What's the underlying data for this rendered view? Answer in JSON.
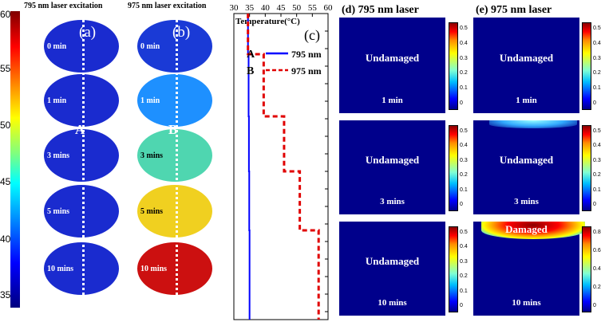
{
  "left_colorbar": {
    "ticks": [
      "60",
      "55",
      "50",
      "45",
      "40",
      "35"
    ]
  },
  "panel_a": {
    "header": "795 nm laser excitation",
    "tag": "(a)",
    "point": "A",
    "times": [
      "0 min",
      "1 min",
      "3 mins",
      "5 mins",
      "10 mins"
    ]
  },
  "panel_b": {
    "header": "975 nm laser excitation",
    "tag": "(b)",
    "point": "B",
    "times": [
      "0 min",
      "1 min",
      "3 mins",
      "5 mins",
      "10 mins"
    ],
    "fill_colors": [
      "#1a3ad6",
      "#1e90ff",
      "#4fd6b0",
      "#f0d020",
      "#cc1010"
    ]
  },
  "panel_c": {
    "tag": "(c)",
    "title": "Temperature(°C)",
    "x_ticks": [
      "30",
      "35",
      "40",
      "45",
      "50",
      "55",
      "60"
    ],
    "legend": [
      {
        "letter": "A",
        "label": "795 nm",
        "color": "#0000ff"
      },
      {
        "letter": "B",
        "label": "975 nm",
        "color": "#e00000"
      }
    ]
  },
  "panel_d": {
    "header": "(d) 795 nm laser",
    "rows": [
      {
        "status": "Undamaged",
        "time": "1 min"
      },
      {
        "status": "Undamaged",
        "time": "3 mins"
      },
      {
        "status": "Undamaged",
        "time": "10 mins"
      }
    ]
  },
  "panel_e": {
    "header": "(e) 975 nm laser",
    "rows": [
      {
        "status": "Undamaged",
        "time": "1 min"
      },
      {
        "status": "Undamaged",
        "time": "3 mins"
      },
      {
        "status": "Damaged",
        "time": "10 mins"
      }
    ]
  },
  "cb_ticks_small": [
    "0.5",
    "0.4",
    "0.3",
    "0.2",
    "0.1",
    "0"
  ],
  "cb_ticks_large": [
    "0.8",
    "0.6",
    "0.4",
    "0.2",
    "0"
  ],
  "chart_data": {
    "type": "line",
    "title": "Temperature(°C)",
    "xlim": [
      30,
      60
    ],
    "series": [
      {
        "name": "795 nm",
        "points": [
          {
            "t": "0 min",
            "temperature": 34.5
          },
          {
            "t": "1 min",
            "temperature": 34.7
          },
          {
            "t": "3 mins",
            "temperature": 34.8
          },
          {
            "t": "5 mins",
            "temperature": 34.9
          },
          {
            "t": "10 mins",
            "temperature": 35.0
          }
        ]
      },
      {
        "name": "975 nm",
        "points": [
          {
            "t": "0 min",
            "temperature": 34.5
          },
          {
            "t": "1 min",
            "temperature": 39.5
          },
          {
            "t": "3 mins",
            "temperature": 46.0
          },
          {
            "t": "5 mins",
            "temperature": 51.0
          },
          {
            "t": "10 mins",
            "temperature": 57.0
          }
        ]
      }
    ]
  }
}
